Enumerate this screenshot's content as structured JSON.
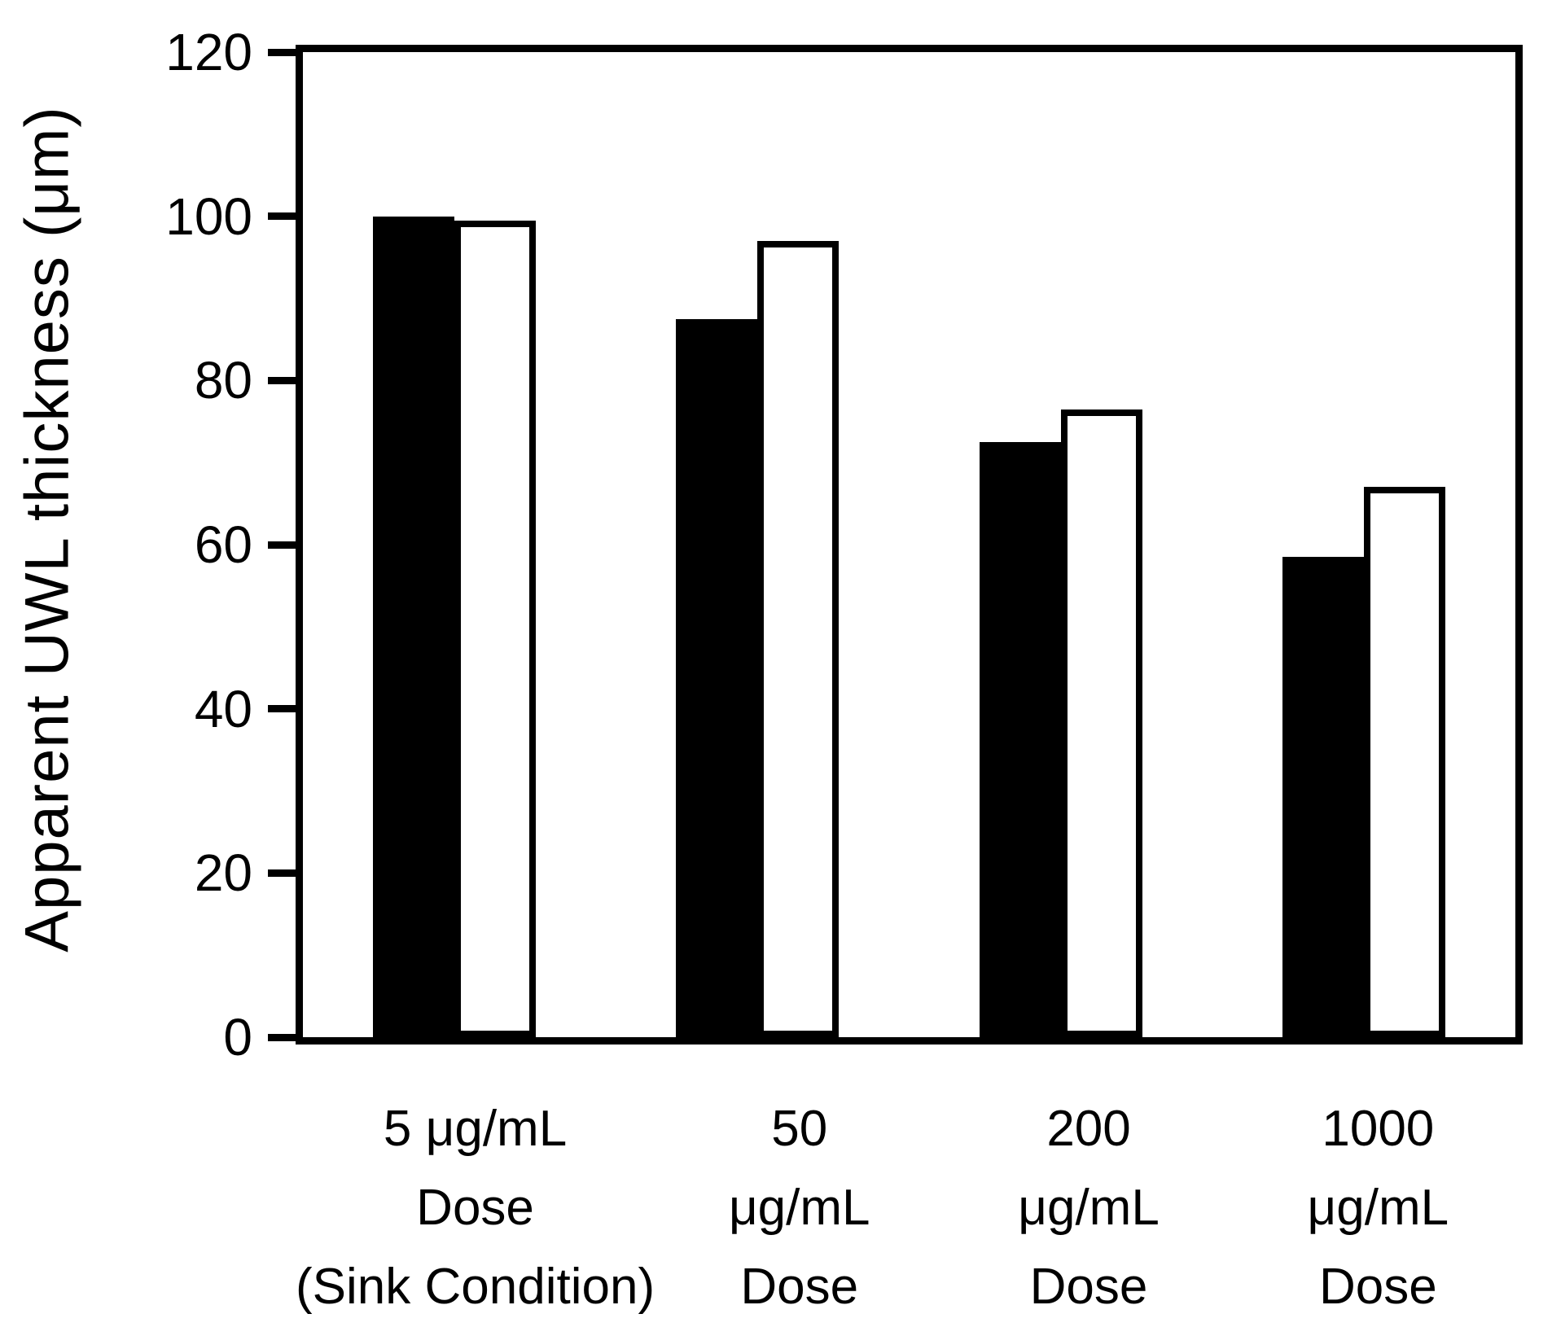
{
  "figure": {
    "kind": "scientific bar chart figure",
    "background": "#ffffff"
  },
  "chart_data": {
    "type": "bar",
    "title": "",
    "xlabel": "",
    "ylabel": "Apparent UWL thickness (μm)",
    "ylim": [
      0,
      120
    ],
    "yticks": [
      0,
      20,
      40,
      60,
      80,
      100,
      120
    ],
    "grid": false,
    "legend": "none",
    "frame": "full box, ticks on left axis only",
    "categories": [
      "5 μg/mL Dose (Sink Condition)",
      "50 μg/mL Dose",
      "200 μg/mL Dose",
      "1000 μg/mL Dose"
    ],
    "category_lines": [
      [
        "5 μg/mL",
        "Dose",
        "(Sink Condition)"
      ],
      [
        "50",
        "μg/mL",
        "Dose"
      ],
      [
        "200",
        "μg/mL",
        "Dose"
      ],
      [
        "1000",
        "μg/mL",
        "Dose"
      ]
    ],
    "series": [
      {
        "name": "black-filled",
        "fill": "#000000",
        "values": [
          100,
          87.5,
          72.5,
          58.5
        ]
      },
      {
        "name": "white-outlined",
        "fill": "#ffffff",
        "stroke": "#000000",
        "values": [
          99.5,
          97,
          76.5,
          67
        ]
      }
    ],
    "colors": {
      "axis": "#000000",
      "background": "#ffffff"
    }
  }
}
